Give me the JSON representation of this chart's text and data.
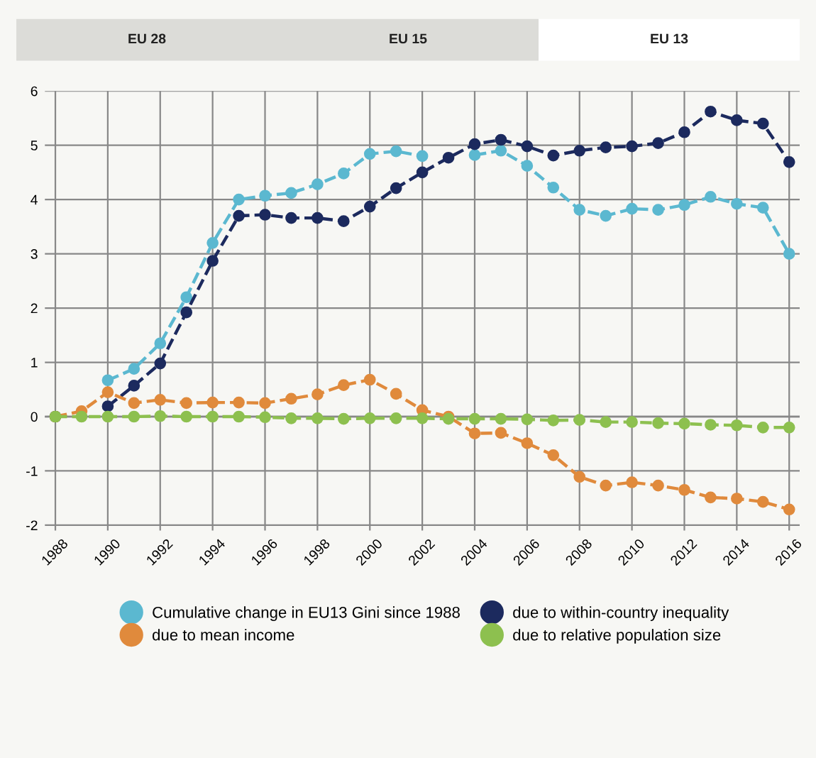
{
  "chart_data": {
    "type": "line",
    "annotations": [
      "EU 28",
      "EU 15",
      "EU 13"
    ],
    "x": [
      1988,
      1989,
      1990,
      1991,
      1992,
      1993,
      1994,
      1995,
      1996,
      1997,
      1998,
      1999,
      2000,
      2001,
      2002,
      2003,
      2004,
      2005,
      2006,
      2007,
      2008,
      2009,
      2010,
      2011,
      2012,
      2013,
      2014,
      2015,
      2016
    ],
    "series": [
      {
        "name": "Cumulative change in EU13 Gini since 1988",
        "color": "#5bb8d0",
        "values": [
          0,
          null,
          0.67,
          0.88,
          1.35,
          2.2,
          3.2,
          4.0,
          4.07,
          4.12,
          4.28,
          4.48,
          4.84,
          4.89,
          4.8,
          null,
          4.82,
          4.9,
          4.62,
          4.22,
          3.81,
          3.7,
          3.83,
          3.81,
          3.9,
          4.05,
          3.92,
          3.85,
          3.0
        ]
      },
      {
        "name": "due to within-country inequality",
        "color": "#1c2a5e",
        "values": [
          0,
          null,
          0.19,
          0.57,
          0.98,
          1.92,
          2.87,
          3.7,
          3.72,
          3.66,
          3.66,
          3.6,
          3.87,
          4.21,
          4.5,
          4.77,
          5.02,
          5.1,
          4.98,
          4.81,
          4.9,
          4.96,
          4.98,
          5.04,
          5.24,
          5.62,
          5.46,
          5.4,
          4.69
        ]
      },
      {
        "name": "due to mean income",
        "color": "#e08a3c",
        "values": [
          0,
          0.1,
          0.45,
          0.25,
          0.31,
          0.25,
          0.26,
          0.26,
          0.25,
          0.33,
          0.41,
          0.58,
          0.68,
          0.42,
          0.12,
          0,
          -0.31,
          -0.3,
          -0.49,
          -0.71,
          -1.11,
          -1.27,
          -1.21,
          -1.27,
          -1.35,
          -1.49,
          -1.51,
          -1.57,
          -1.71
        ]
      },
      {
        "name": "due to relative population size",
        "color": "#8dc04f",
        "values": [
          0,
          0,
          0,
          0,
          0.01,
          0,
          0,
          0,
          -0.01,
          -0.03,
          -0.03,
          -0.04,
          -0.03,
          -0.03,
          -0.03,
          -0.04,
          -0.04,
          -0.04,
          -0.05,
          -0.07,
          -0.06,
          -0.1,
          -0.1,
          -0.12,
          -0.13,
          -0.15,
          -0.16,
          -0.2,
          -0.2
        ]
      }
    ],
    "xlim": [
      1987.6,
      2016.4
    ],
    "xticks": [
      1988,
      1990,
      1992,
      1994,
      1996,
      1998,
      2000,
      2002,
      2004,
      2006,
      2008,
      2010,
      2012,
      2014,
      2016
    ],
    "ylim": [
      -2.1,
      6
    ],
    "yticks": [
      -2,
      -1,
      0,
      1,
      2,
      3,
      4,
      5,
      6
    ],
    "grid": true,
    "legend": "bottom",
    "marker": "circle",
    "line_style": "dashed"
  }
}
